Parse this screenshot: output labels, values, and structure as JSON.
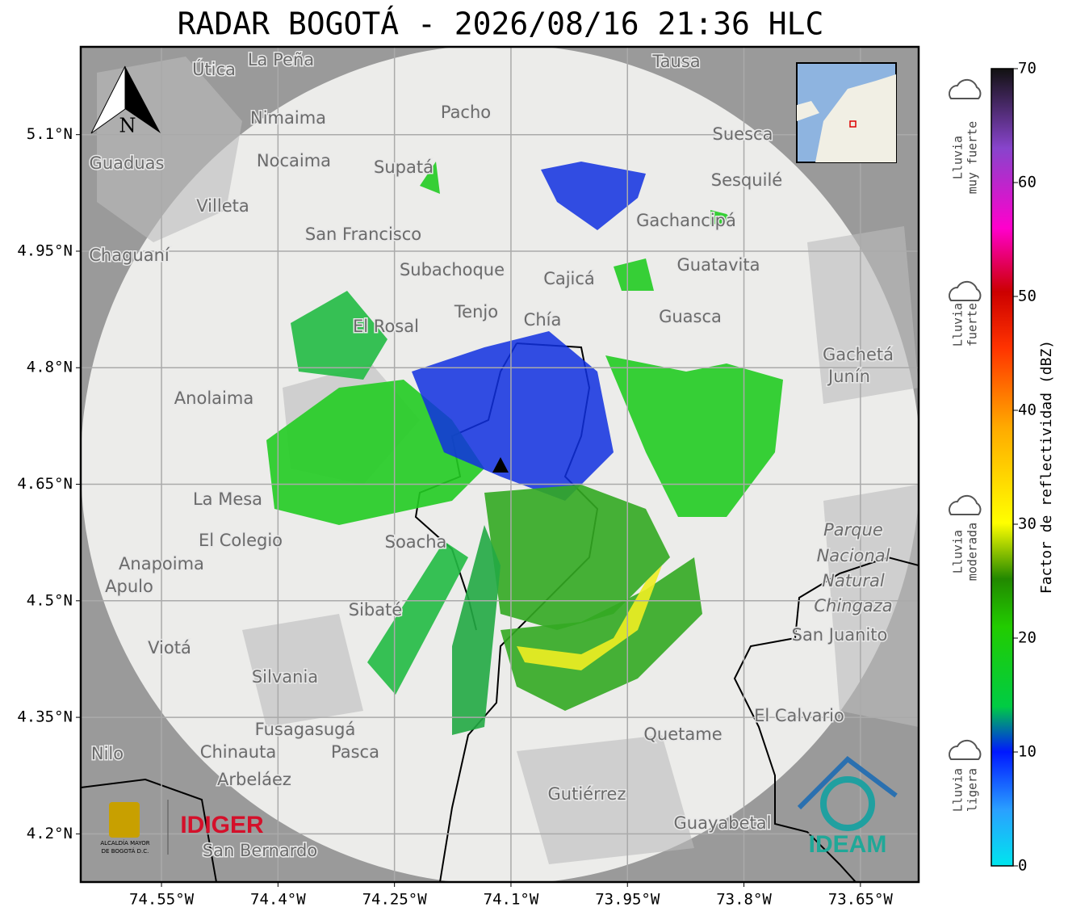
{
  "title": "RADAR BOGOTÁ - 2026/08/16 21:36 HLC",
  "map": {
    "latlim": [
      4.138,
      5.213
    ],
    "lonlim": [
      -74.654,
      -73.575
    ],
    "lat_ticks": [
      {
        "value": 5.1,
        "label": "5.1°N"
      },
      {
        "value": 4.95,
        "label": "4.95°N"
      },
      {
        "value": 4.8,
        "label": "4.8°N"
      },
      {
        "value": 4.65,
        "label": "4.65°N"
      },
      {
        "value": 4.5,
        "label": "4.5°N"
      },
      {
        "value": 4.35,
        "label": "4.35°N"
      },
      {
        "value": 4.2,
        "label": "4.2°N"
      }
    ],
    "lon_ticks": [
      {
        "value": -74.55,
        "label": "74.55°W"
      },
      {
        "value": -74.4,
        "label": "74.4°W"
      },
      {
        "value": -74.25,
        "label": "74.25°W"
      },
      {
        "value": -74.1,
        "label": "74.1°W"
      },
      {
        "value": -73.95,
        "label": "73.95°W"
      },
      {
        "value": -73.8,
        "label": "73.8°W"
      },
      {
        "value": -73.65,
        "label": "73.65°W"
      }
    ],
    "places": [
      "La Peña",
      "Útica",
      "Tausa",
      "Pacho",
      "Nimaima",
      "Nocaima",
      "Guaduas",
      "Supatá",
      "Suesca",
      "Sesquilé",
      "Gachancipá",
      "Villeta",
      "San Francisco",
      "Chaguaní",
      "Guatavita",
      "Subachoque",
      "Cajicá",
      "Tenjo",
      "Chía",
      "El Rosal",
      "Guasca",
      "Gachetá",
      "Junín",
      "Anolaima",
      "La Mesa",
      "El Colegio",
      "Soacha",
      "Anapoima",
      "Apulo",
      "Sibaté",
      "San Juanito",
      "Viotá",
      "Silvania",
      "El Calvario",
      "Fusagasugá",
      "Quetame",
      "Nilo",
      "Chinauta",
      "Pasca",
      "Arbeláez",
      "Gutiérrez",
      "Guayabetal",
      "San Bernardo",
      "Parque",
      "Nacional",
      "Natural",
      "Chingaza"
    ],
    "north": "N",
    "logos": {
      "alcaldia": "ALCALDÍA MAYOR",
      "alcaldia2": "DE BOGOTÁ D.C.",
      "idiger": "IDIGER",
      "ideam": "IDEAM"
    }
  },
  "colorbar": {
    "label": "Factor de reflectividad (dBZ)",
    "lim": [
      0,
      70
    ],
    "ticks": [
      0,
      10,
      20,
      30,
      40,
      50,
      60,
      70
    ]
  },
  "legend": [
    {
      "line1": "Lluvia",
      "line2": "muy fuerte"
    },
    {
      "line1": "Lluvia",
      "line2": "fuerte"
    },
    {
      "line1": "Lluvia",
      "line2": "moderada"
    },
    {
      "line1": "Lluvia",
      "line2": "ligera"
    }
  ]
}
